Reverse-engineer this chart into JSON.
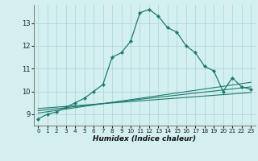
{
  "xlabel": "Humidex (Indice chaleur)",
  "bg_color": "#d4efef",
  "grid_color": "#afd8d8",
  "line_color": "#1e7a70",
  "xlim": [
    -0.5,
    23.5
  ],
  "ylim": [
    8.5,
    13.8
  ],
  "yticks": [
    9,
    10,
    11,
    12,
    13
  ],
  "xticks": [
    0,
    1,
    2,
    3,
    4,
    5,
    6,
    7,
    8,
    9,
    10,
    11,
    12,
    13,
    14,
    15,
    16,
    17,
    18,
    19,
    20,
    21,
    22,
    23
  ],
  "series1_x": [
    0,
    1,
    2,
    3,
    4,
    5,
    6,
    7,
    8,
    9,
    10,
    11,
    12,
    13,
    14,
    15,
    16,
    17,
    18,
    19,
    20,
    21,
    22,
    23
  ],
  "series1_y": [
    8.8,
    9.0,
    9.1,
    9.3,
    9.5,
    9.7,
    10.0,
    10.3,
    11.5,
    11.7,
    12.2,
    13.45,
    13.6,
    13.3,
    12.8,
    12.6,
    12.0,
    11.7,
    11.1,
    10.9,
    10.0,
    10.6,
    10.2,
    10.1
  ],
  "series2_x": [
    0,
    23
  ],
  "series2_y": [
    9.05,
    10.4
  ],
  "series3_x": [
    0,
    23
  ],
  "series3_y": [
    9.15,
    10.2
  ],
  "series4_x": [
    0,
    23
  ],
  "series4_y": [
    9.25,
    9.95
  ]
}
